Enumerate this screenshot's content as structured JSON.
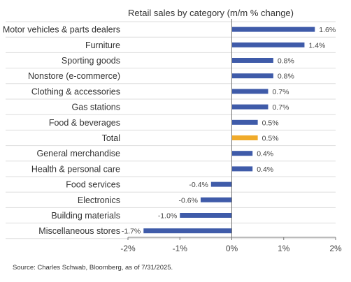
{
  "chart_data": {
    "type": "bar",
    "orientation": "horizontal",
    "title": "Retail sales by category (m/m % change)",
    "source": "Source: Charles Schwab, Bloomberg, as of 7/31/2025.",
    "categories": [
      "Motor vehicles & parts dealers",
      "Furniture",
      "Sporting goods",
      "Nonstore (e-commerce)",
      "Clothing & accessories",
      "Gas stations",
      "Food & beverages",
      "Total",
      "General merchandise",
      "Health & personal care",
      "Food services",
      "Electronics",
      "Building materials",
      "Miscellaneous stores"
    ],
    "values": [
      1.6,
      1.4,
      0.8,
      0.8,
      0.7,
      0.7,
      0.5,
      0.5,
      0.4,
      0.4,
      -0.4,
      -0.6,
      -1.0,
      -1.7
    ],
    "value_labels": [
      "1.6%",
      "1.4%",
      "0.8%",
      "0.8%",
      "0.7%",
      "0.7%",
      "0.5%",
      "0.5%",
      "0.4%",
      "0.4%",
      "-0.4%",
      "-0.6%",
      "-1.0%",
      "-1.7%"
    ],
    "highlight_category": "Total",
    "xlim": [
      -2,
      2
    ],
    "xticks": [
      -2,
      -1,
      0,
      1,
      2
    ],
    "xtick_labels": [
      "-2%",
      "-1%",
      "0%",
      "1%",
      "2%"
    ],
    "grid": "horizontal separators between rows",
    "colors": {
      "bar": "#3f5ba9",
      "highlight": "#f0ab2b",
      "axis": "#777777",
      "grid": "#dddddd"
    }
  }
}
